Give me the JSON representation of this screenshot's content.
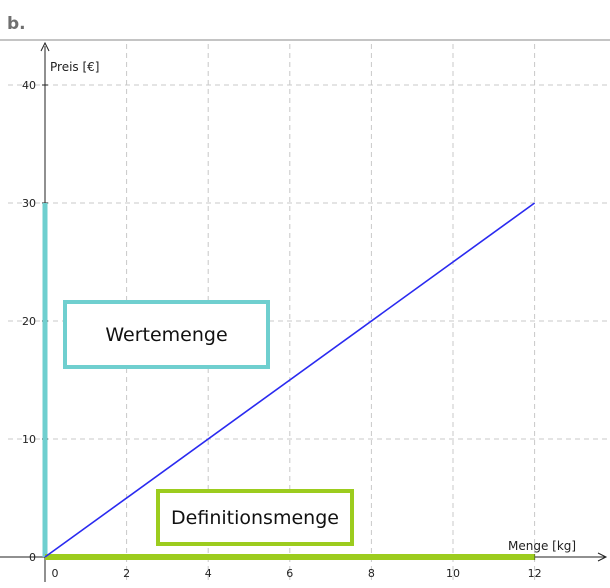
{
  "panel_label": "b.",
  "chart_data": {
    "type": "line",
    "xlabel": "Menge [kg]",
    "ylabel": "Preis [€]",
    "xlim": [
      -0.2,
      13
    ],
    "ylim": [
      -0.6,
      43
    ],
    "xticks": [
      0,
      2,
      4,
      6,
      8,
      10,
      12
    ],
    "yticks": [
      0,
      10,
      20,
      30,
      40
    ],
    "grid": true,
    "series": [
      {
        "x": [
          0,
          12
        ],
        "y": [
          0,
          30
        ],
        "color": "#2a2af0"
      }
    ],
    "range_highlight": {
      "label": "Wertemenge",
      "y": [
        0,
        30
      ],
      "color": "#6fcfcf"
    },
    "domain_highlight": {
      "label": "Definitionsmenge",
      "x": [
        0,
        12
      ],
      "color": "#9ccc1e"
    }
  }
}
